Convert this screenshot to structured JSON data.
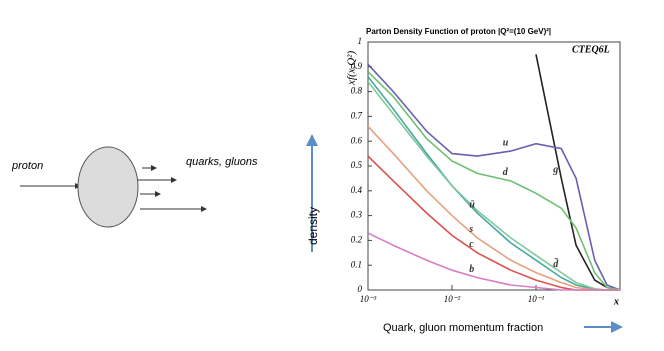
{
  "diagram": {
    "incoming": "proton",
    "outgoing": "quarks, gluons"
  },
  "axis_arrows": {
    "vertical": "density",
    "horizontal": "Quark, gluon momentum fraction"
  },
  "chart_data": {
    "type": "line",
    "title": "Parton Density Function of proton |Q²=(10 GeV)²|",
    "annotation": "CTEQ6L",
    "y_label": "xf(x,Q²)",
    "x_label": "x",
    "log_x": true,
    "x": [
      0.001,
      0.002,
      0.005,
      0.01,
      0.02,
      0.05,
      0.1,
      0.2,
      0.3,
      0.5,
      0.7,
      1
    ],
    "xlim": [
      0.001,
      1
    ],
    "xticks": [
      {
        "value": 0.001,
        "label": "10⁻³"
      },
      {
        "value": 0.01,
        "label": "10⁻²"
      },
      {
        "value": 0.1,
        "label": "10⁻¹"
      }
    ],
    "ylim": [
      0,
      1
    ],
    "yticks": [
      0,
      0.1,
      0.2,
      0.3,
      0.4,
      0.5,
      0.6,
      0.7,
      0.8,
      0.9,
      1
    ],
    "series": [
      {
        "name": "g",
        "color": "#222222",
        "values": [
          null,
          null,
          null,
          null,
          null,
          null,
          0.95,
          0.45,
          0.18,
          0.04,
          0.01,
          0
        ]
      },
      {
        "name": "u",
        "color": "#6a5fb0",
        "values": [
          0.91,
          0.8,
          0.64,
          0.55,
          0.54,
          0.56,
          0.59,
          0.57,
          0.45,
          0.12,
          0.02,
          0
        ]
      },
      {
        "name": "d",
        "color": "#6fbf6f",
        "values": [
          0.88,
          0.78,
          0.61,
          0.52,
          0.47,
          0.44,
          0.39,
          0.33,
          0.25,
          0.07,
          0.01,
          0
        ]
      },
      {
        "name": "ū",
        "color": "#49a9a0",
        "values": [
          0.86,
          0.73,
          0.55,
          0.42,
          0.31,
          0.19,
          0.12,
          0.05,
          0.02,
          0.003,
          0,
          0
        ]
      },
      {
        "name": "d̄",
        "color": "#7fc99a",
        "values": [
          0.84,
          0.71,
          0.54,
          0.42,
          0.32,
          0.21,
          0.14,
          0.07,
          0.03,
          0.005,
          0,
          0
        ]
      },
      {
        "name": "s",
        "color": "#e8a07e",
        "values": [
          0.66,
          0.55,
          0.4,
          0.3,
          0.21,
          0.12,
          0.07,
          0.03,
          0.01,
          0,
          0,
          0
        ]
      },
      {
        "name": "c",
        "color": "#d9534f",
        "values": [
          0.54,
          0.44,
          0.31,
          0.22,
          0.15,
          0.08,
          0.04,
          0.01,
          0,
          0,
          0,
          0
        ]
      },
      {
        "name": "b",
        "color": "#d77fc5",
        "values": [
          0.23,
          0.18,
          0.12,
          0.08,
          0.05,
          0.02,
          0.01,
          0,
          0,
          0,
          0,
          0
        ]
      }
    ]
  }
}
